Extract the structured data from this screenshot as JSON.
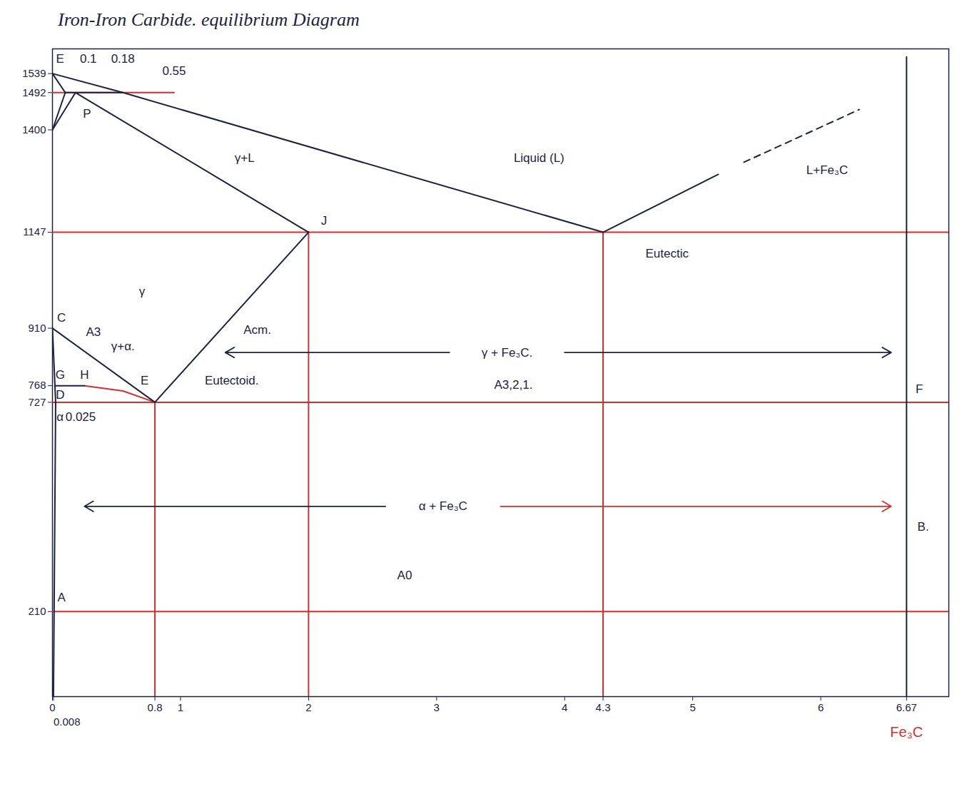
{
  "chart_data": {
    "type": "line",
    "title": "Iron-Iron Carbide. equilibrium Diagram",
    "xlim": [
      0,
      7
    ],
    "ylim": [
      0,
      1600
    ],
    "xticks": [
      0,
      {
        "value": 0.008,
        "label": "0.008"
      },
      0.8,
      1,
      2,
      3,
      4,
      4.3,
      5,
      6,
      6.67
    ],
    "yticks": [
      210,
      727,
      768,
      910,
      1147,
      1400,
      1492,
      1539
    ],
    "grid": false,
    "lines": [
      {
        "color": "#d62f2f",
        "line_style": "solid",
        "points": [
          [
            0,
            1492
          ],
          [
            0.95,
            1492
          ]
        ]
      },
      {
        "color": "#d62f2f",
        "line_style": "solid",
        "points": [
          [
            0,
            1147
          ],
          [
            7,
            1147
          ]
        ]
      },
      {
        "color": "#d62f2f",
        "line_style": "solid",
        "points": [
          [
            0,
            727
          ],
          [
            7,
            727
          ]
        ]
      },
      {
        "color": "#d62f2f",
        "line_style": "solid",
        "points": [
          [
            0,
            210
          ],
          [
            7,
            210
          ]
        ]
      },
      {
        "color": "#d62f2f",
        "line_style": "solid",
        "points": [
          [
            0.8,
            727
          ],
          [
            0.8,
            0
          ]
        ]
      },
      {
        "color": "#d62f2f",
        "line_style": "solid",
        "points": [
          [
            2,
            1147
          ],
          [
            2,
            0
          ]
        ]
      },
      {
        "color": "#d62f2f",
        "line_style": "solid",
        "points": [
          [
            4.3,
            1147
          ],
          [
            4.3,
            0
          ]
        ]
      },
      {
        "color": "#d62f2f",
        "line_style": "solid",
        "points": [
          [
            0.25,
            768
          ],
          [
            0.55,
            755
          ],
          [
            0.8,
            727
          ]
        ]
      },
      {
        "color": "#1c2340",
        "line_style": "solid",
        "points": [
          [
            0,
            1539
          ],
          [
            0.55,
            1492
          ],
          [
            4.3,
            1147
          ]
        ]
      },
      {
        "color": "#1c2340",
        "line_style": "solid",
        "points": [
          [
            4.3,
            1147
          ],
          [
            5.2,
            1290
          ]
        ]
      },
      {
        "color": "#1c2340",
        "line_style": "dashed",
        "points": [
          [
            5.4,
            1320
          ],
          [
            6.3,
            1450
          ]
        ]
      },
      {
        "color": "#1c2340",
        "line_style": "solid",
        "points": [
          [
            0,
            1539
          ],
          [
            0.1,
            1492
          ]
        ]
      },
      {
        "color": "#1c2340",
        "line_style": "solid",
        "points": [
          [
            0,
            1400
          ],
          [
            0.1,
            1492
          ]
        ]
      },
      {
        "color": "#1c2340",
        "line_style": "solid",
        "points": [
          [
            0.1,
            1492
          ],
          [
            0.55,
            1492
          ]
        ]
      },
      {
        "color": "#1c2340",
        "line_style": "solid",
        "points": [
          [
            0,
            1400
          ],
          [
            0.18,
            1492
          ],
          [
            2,
            1147
          ]
        ]
      },
      {
        "color": "#1c2340",
        "line_style": "solid",
        "points": [
          [
            0.8,
            727
          ],
          [
            2,
            1147
          ]
        ]
      },
      {
        "color": "#1c2340",
        "line_style": "solid",
        "points": [
          [
            0,
            910
          ],
          [
            0.8,
            727
          ]
        ]
      },
      {
        "color": "#1c2340",
        "line_style": "solid",
        "points": [
          [
            0,
            910
          ],
          [
            0.025,
            727
          ],
          [
            0.008,
            0
          ]
        ]
      },
      {
        "color": "#1c2340",
        "line_style": "solid",
        "points": [
          [
            0.02,
            768
          ],
          [
            0.25,
            768
          ]
        ]
      },
      {
        "color": "#1c2340",
        "line_style": "solid",
        "points": [
          [
            6.67,
            0
          ],
          [
            6.67,
            1580
          ]
        ]
      }
    ],
    "arrows": [
      {
        "x1": 3.1,
        "y1": 850,
        "x2": 1.35,
        "y2": 850,
        "color": "#1c2340"
      },
      {
        "x1": 4.0,
        "y1": 850,
        "x2": 6.55,
        "y2": 850,
        "color": "#1c2340"
      },
      {
        "x1": 2.6,
        "y1": 470,
        "x2": 0.25,
        "y2": 470,
        "color": "#1c2340"
      },
      {
        "x1": 3.5,
        "y1": 470,
        "x2": 6.55,
        "y2": 470,
        "color": "#d62f2f"
      }
    ],
    "annotations": [
      {
        "text": "E",
        "x": 0.06,
        "y": 1575,
        "color": "#1c2340"
      },
      {
        "text": "0.1",
        "x": 0.28,
        "y": 1575,
        "color": "#1c2340"
      },
      {
        "text": "0.18",
        "x": 0.55,
        "y": 1575,
        "color": "#1c2340"
      },
      {
        "text": "0.55",
        "x": 0.95,
        "y": 1545,
        "color": "#1c2340"
      },
      {
        "text": "P",
        "x": 0.27,
        "y": 1440,
        "color": "#1c2340"
      },
      {
        "text": "γ+L",
        "x": 1.5,
        "y": 1330,
        "color": "#1c2340"
      },
      {
        "text": "Liquid (L)",
        "x": 3.8,
        "y": 1330,
        "color": "#1c2340"
      },
      {
        "text": "L+Fe₃C",
        "x": 6.05,
        "y": 1300,
        "color": "#1c2340"
      },
      {
        "text": "J",
        "x": 2.12,
        "y": 1175,
        "color": "#1c2340"
      },
      {
        "text": "Eutectic",
        "x": 4.8,
        "y": 1095,
        "color": "#1c2340"
      },
      {
        "text": "γ",
        "x": 0.7,
        "y": 1000,
        "color": "#1c2340"
      },
      {
        "text": "C",
        "x": 0.07,
        "y": 935,
        "color": "#1c2340"
      },
      {
        "text": "A3",
        "x": 0.32,
        "y": 900,
        "color": "#1c2340"
      },
      {
        "text": "Acm.",
        "x": 1.6,
        "y": 905,
        "color": "#1c2340"
      },
      {
        "text": "γ+α.",
        "x": 0.55,
        "y": 865,
        "color": "#1c2340"
      },
      {
        "text": "γ + Fe₃C.",
        "x": 3.55,
        "y": 850,
        "color": "#1c2340"
      },
      {
        "text": "G",
        "x": 0.06,
        "y": 795,
        "color": "#1c2340"
      },
      {
        "text": "H",
        "x": 0.25,
        "y": 795,
        "color": "#1c2340"
      },
      {
        "text": "E",
        "x": 0.72,
        "y": 780,
        "color": "#1c2340"
      },
      {
        "text": "Eutectoid.",
        "x": 1.4,
        "y": 780,
        "color": "#1c2340"
      },
      {
        "text": "A3,2,1.",
        "x": 3.6,
        "y": 770,
        "color": "#1c2340"
      },
      {
        "text": "F",
        "x": 6.77,
        "y": 760,
        "color": "#1c2340"
      },
      {
        "text": "D",
        "x": 0.06,
        "y": 746,
        "color": "#1c2340"
      },
      {
        "text": "α",
        "x": 0.06,
        "y": 690,
        "color": "#1c2340"
      },
      {
        "text": "0.025",
        "x": 0.22,
        "y": 690,
        "color": "#1c2340"
      },
      {
        "text": "α + Fe₃C",
        "x": 3.05,
        "y": 470,
        "color": "#1c2340"
      },
      {
        "text": "B.",
        "x": 6.8,
        "y": 420,
        "color": "#1c2340"
      },
      {
        "text": "A0",
        "x": 2.75,
        "y": 300,
        "color": "#1c2340"
      },
      {
        "text": "A",
        "x": 0.07,
        "y": 245,
        "color": "#1c2340"
      }
    ],
    "axis_notes": [
      {
        "text": "Fe₃C",
        "x": 6.67,
        "color": "#d62f2f"
      }
    ]
  }
}
